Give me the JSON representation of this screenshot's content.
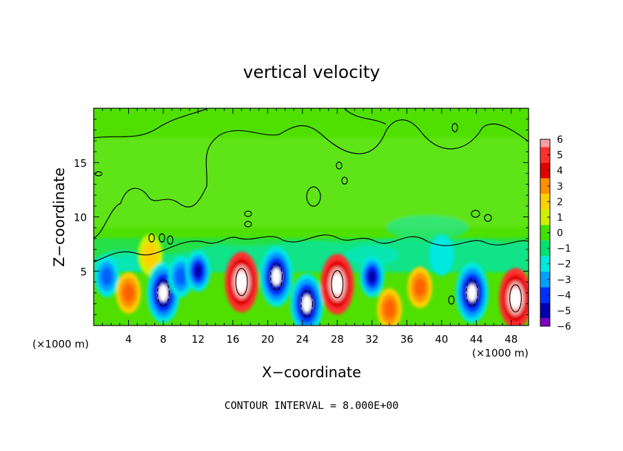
{
  "chart_data": {
    "type": "heatmap",
    "title": "vertical velocity",
    "xlabel": "X−coordinate",
    "ylabel": "Z−coordinate",
    "x_unit_left": "(×1000 m)",
    "x_unit_right": "(×1000 m)",
    "footer": "CONTOUR INTERVAL = 8.000E+00",
    "xlim": [
      0,
      50
    ],
    "ylim": [
      0,
      20
    ],
    "x_ticks": [
      4,
      8,
      12,
      16,
      20,
      24,
      28,
      32,
      36,
      40,
      44,
      48
    ],
    "y_ticks": [
      5,
      10,
      15
    ],
    "colorbar": {
      "levels": [
        "6",
        "5",
        "4",
        "3",
        "2",
        "1",
        "0",
        "−1",
        "−2",
        "−3",
        "−4",
        "−5",
        "−6"
      ],
      "colors": [
        "#f4a0a0",
        "#ff3030",
        "#e00000",
        "#ff9000",
        "#ffd000",
        "#d0f000",
        "#40e000",
        "#00e070",
        "#00e8e0",
        "#00a0ff",
        "#0030ff",
        "#0000b0",
        "#8000c0"
      ]
    },
    "cells": [
      {
        "x": 1.5,
        "z": 4.5,
        "w": -3
      },
      {
        "x": 4.0,
        "z": 3.0,
        "w": 3
      },
      {
        "x": 6.5,
        "z": 6.5,
        "w": 2
      },
      {
        "x": 8.0,
        "z": 3.0,
        "w": -6
      },
      {
        "x": 10.0,
        "z": 4.5,
        "w": -3
      },
      {
        "x": 12.0,
        "z": 5.0,
        "w": -4
      },
      {
        "x": 17.0,
        "z": 4.0,
        "w": 6
      },
      {
        "x": 21.0,
        "z": 4.5,
        "w": -6
      },
      {
        "x": 24.5,
        "z": 2.0,
        "w": -6
      },
      {
        "x": 28.0,
        "z": 3.8,
        "w": 6
      },
      {
        "x": 32.0,
        "z": 4.5,
        "w": -4
      },
      {
        "x": 34.0,
        "z": 1.5,
        "w": 3
      },
      {
        "x": 37.5,
        "z": 3.5,
        "w": 3
      },
      {
        "x": 40.0,
        "z": 6.5,
        "w": -2
      },
      {
        "x": 43.5,
        "z": 3.0,
        "w": -6
      },
      {
        "x": 48.5,
        "z": 2.5,
        "w": 6
      }
    ]
  }
}
